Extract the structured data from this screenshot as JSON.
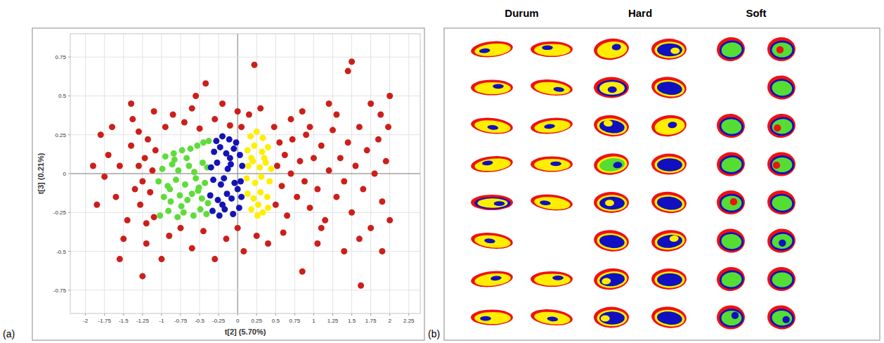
{
  "chart_data": {
    "type": "scatter",
    "xlabel": "t[2] (5.70%)",
    "ylabel": "t[3] (0.21%)",
    "xlim": [
      -2.2,
      2.4
    ],
    "ylim": [
      -0.9,
      0.9
    ],
    "xticks": [
      -2,
      -1.75,
      -1.5,
      -1.25,
      -1,
      -0.75,
      -0.5,
      -0.25,
      0,
      0.25,
      0.5,
      0.75,
      1,
      1.25,
      1.5,
      1.75,
      2,
      2.25
    ],
    "yticks": [
      -0.75,
      -0.5,
      -0.25,
      0,
      0.25,
      0.5,
      0.75
    ],
    "grid": true,
    "marker": "circle",
    "series": [
      {
        "color": "#cc1f1a",
        "x": [
          -1.28,
          -1.25,
          -1.22,
          -1.18,
          -1.15,
          -1.12,
          -1.1,
          -1.08,
          -1.3,
          -1.2,
          -1.35,
          -1.4,
          -1.45,
          -1.55,
          -1.6,
          -1.7,
          -1.75,
          -1.65,
          -1.5,
          -1.38,
          -0.95,
          -0.85,
          -0.7,
          -0.6,
          -0.5,
          -0.42,
          -0.3,
          -0.2,
          -0.1,
          0,
          0.05,
          -0.9,
          -0.75,
          -0.6,
          -0.45,
          -0.3,
          -0.15,
          0,
          0.08,
          -1,
          -0.55,
          0.15,
          0.3,
          0.22,
          0.25,
          0.4,
          0.5,
          0.52,
          0.55,
          0.58,
          0.62,
          0.65,
          0.7,
          0.72,
          0.78,
          0.82,
          0.88,
          0.9,
          0.95,
          1,
          1.05,
          1.1,
          1.15,
          1.2,
          1.25,
          1.3,
          1.35,
          1.4,
          1.45,
          1.5,
          1.55,
          1.6,
          1.65,
          1.7,
          1.75,
          1.8,
          1.85,
          1.9,
          1.95,
          2,
          1.98,
          0.6,
          0.85,
          1.05,
          1.2,
          1.4,
          1.5,
          1.45,
          1.62,
          0.85,
          1.75,
          1.9,
          2,
          0.7,
          1.3,
          1.6,
          1.88,
          0.48,
          0.95,
          1.1,
          -1.25,
          -1.55,
          -1.8,
          -1.85,
          -1.4,
          -1.1,
          -1.2,
          -1.9,
          -1.3
        ],
        "values": [
          -0.2,
          -0.05,
          0.1,
          0.22,
          -0.12,
          0.02,
          -0.28,
          0.15,
          0.05,
          -0.32,
          -0.1,
          0.18,
          -0.3,
          0.05,
          -0.15,
          0.12,
          -0.02,
          0.3,
          -0.42,
          0.35,
          0.3,
          0.38,
          0.33,
          0.42,
          0.29,
          0.58,
          0.35,
          0.45,
          0.31,
          0.4,
          0.3,
          -0.4,
          -0.35,
          -0.48,
          -0.37,
          -0.55,
          -0.42,
          -0.35,
          -0.5,
          -0.55,
          0.5,
          0.38,
          0.42,
          0.7,
          -0.4,
          -0.45,
          -0.2,
          0.05,
          0.2,
          -0.08,
          0.12,
          -0.27,
          0,
          0.22,
          -0.15,
          0.08,
          -0.05,
          0.25,
          -0.22,
          0.1,
          -0.1,
          0.18,
          -0.3,
          0.02,
          0.28,
          -0.15,
          0.1,
          -0.05,
          0.2,
          -0.25,
          0.05,
          0.3,
          -0.1,
          0.15,
          -0.35,
          0,
          0.22,
          -0.18,
          0.08,
          -0.3,
          0.3,
          -0.38,
          0.4,
          -0.45,
          0.45,
          -0.5,
          0.72,
          0.66,
          -0.72,
          -0.63,
          0.45,
          -0.5,
          0.5,
          0.35,
          0.38,
          -0.42,
          0.38,
          0.3,
          0.3,
          -0.35,
          -0.66,
          -0.55,
          0.25,
          -0.2,
          0.45,
          0.4,
          -0.45,
          0.05,
          0.27
        ]
      },
      {
        "color": "#5fdc3c",
        "x": [
          -1.02,
          -0.91,
          -0.79,
          -0.71,
          -0.58,
          -0.49,
          -0.41,
          -0.97,
          -0.88,
          -0.76,
          -0.66,
          -0.6,
          -0.47,
          -0.39,
          -1.04,
          -0.92,
          -0.81,
          -0.69,
          -0.55,
          -0.51,
          -0.43,
          -0.99,
          -0.86,
          -0.78,
          -0.64,
          -0.57,
          -0.46,
          -0.4,
          -0.95,
          -0.84,
          -0.73,
          -0.62,
          -0.53,
          -0.45,
          -0.38,
          -0.74,
          -0.83,
          -0.52,
          -0.67,
          -0.89
        ],
        "values": [
          -0.27,
          -0.24,
          -0.28,
          -0.25,
          -0.27,
          -0.23,
          -0.26,
          -0.15,
          -0.18,
          -0.14,
          -0.17,
          -0.13,
          -0.16,
          -0.19,
          -0.05,
          -0.08,
          -0.04,
          -0.07,
          -0.03,
          -0.09,
          -0.06,
          0.03,
          0.06,
          0.02,
          0.05,
          0.01,
          0.07,
          0.04,
          0.11,
          0.13,
          0.15,
          0.16,
          0.18,
          0.2,
          0.21,
          -0.21,
          0.09,
          -0.11,
          0.1,
          -0.1
        ]
      },
      {
        "color": "#1414b4",
        "x": [
          -0.33,
          -0.24,
          -0.17,
          -0.06,
          0.02,
          -0.36,
          -0.26,
          -0.14,
          -0.08,
          0.05,
          -0.32,
          -0.22,
          -0.18,
          -0.04,
          0.04,
          -0.35,
          -0.27,
          -0.13,
          -0.09,
          0.06,
          -0.31,
          -0.23,
          -0.15,
          -0.05,
          0.03,
          -0.28,
          -0.2,
          -0.11,
          -0.02,
          -0.2,
          -0.1,
          0
        ],
        "values": [
          -0.24,
          -0.27,
          -0.23,
          -0.26,
          -0.22,
          -0.14,
          -0.17,
          -0.13,
          -0.16,
          -0.15,
          -0.04,
          -0.07,
          -0.03,
          -0.06,
          -0.05,
          0.04,
          0.07,
          0.03,
          0.06,
          0.05,
          0.14,
          0.17,
          0.13,
          0.16,
          0.12,
          0.21,
          0.24,
          0.22,
          0.2,
          -0.2,
          0.1,
          -0.1
        ]
      },
      {
        "color": "#ffee00",
        "x": [
          0.18,
          0.26,
          0.33,
          0.4,
          0.13,
          0.21,
          0.3,
          0.39,
          0.12,
          0.23,
          0.31,
          0.42,
          0.14,
          0.2,
          0.29,
          0.37,
          0.44,
          0.13,
          0.22,
          0.32,
          0.4,
          0.17,
          0.25,
          0.33,
          0.27,
          0.35,
          0.18
        ],
        "values": [
          -0.23,
          -0.27,
          -0.25,
          -0.22,
          -0.13,
          -0.16,
          -0.12,
          -0.15,
          -0.03,
          -0.06,
          -0.02,
          -0.05,
          0.05,
          0.08,
          0.04,
          0.07,
          0.03,
          0.15,
          0.18,
          0.14,
          0.17,
          0.24,
          0.27,
          0.23,
          -0.2,
          0.1,
          0.1
        ]
      }
    ]
  },
  "panel_labels": [
    "(a)",
    "(b)"
  ],
  "panel_b": {
    "groups": [
      {
        "title": "Durum",
        "columns": [
          [
            {
              "color": "#ffee00",
              "ring": "#ffee00",
              "patch": "#1010c0"
            },
            {
              "color": "#ffee00",
              "ring": "#ffee00",
              "patch": "#1010c0"
            },
            {
              "color": "#ffee00",
              "ring": "#ffee00",
              "patch": "#1010c0"
            },
            {
              "color": "#ffee00",
              "ring": "#ffee00",
              "patch": "#1010c0"
            },
            {
              "color": "#ffee00",
              "ring": "#1010c0",
              "patch": "#1010c0"
            },
            {
              "color": "#ffee00",
              "ring": "#ffee00",
              "patch": "#1010c0"
            },
            {
              "color": "#ffee00",
              "ring": "#ffee00",
              "patch": "#1010c0"
            },
            {
              "color": "#ffee00",
              "ring": "#ffee00",
              "patch": "#1010c0"
            }
          ],
          [
            {
              "color": "#ffee00",
              "ring": "#ffee00",
              "patch": "#1010c0"
            },
            {
              "color": "#ffee00",
              "ring": "#ffee00",
              "patch": "#1010c0"
            },
            {
              "color": "#ffee00",
              "ring": "#ffee00",
              "patch": "#1010c0"
            },
            {
              "color": "#ffee00",
              "ring": "#ffee00",
              "patch": "#1010c0"
            },
            {
              "color": "#ffee00",
              "ring": "#ffee00",
              "patch": "#1010c0"
            },
            null,
            {
              "color": "#ffee00",
              "ring": "#ffee00",
              "patch": "#1010c0"
            },
            {
              "color": "#ffee00",
              "ring": "#ffee00",
              "patch": "#1010c0"
            }
          ]
        ]
      },
      {
        "title": "Hard",
        "columns": [
          [
            {
              "color": "#ffee00",
              "ring": "#ffee00",
              "patch": "#1010c0"
            },
            {
              "color": "#ffee00",
              "ring": "#1010c0",
              "patch": "#1010c0"
            },
            {
              "color": "#1010c0",
              "ring": "#ffee00",
              "patch": "#ffee00"
            },
            {
              "color": "#55dd33",
              "ring": "#ffee00",
              "patch": "#1010c0"
            },
            {
              "color": "#1010c0",
              "ring": "#ffee00",
              "patch": "#ffee00"
            },
            {
              "color": "#1010c0",
              "ring": "#ffee00",
              "patch": "#1010c0"
            },
            {
              "color": "#1010c0",
              "ring": "#ffee00",
              "patch": "#ffee00"
            },
            {
              "color": "#1010c0",
              "ring": "#ffee00",
              "patch": "#ffee00"
            }
          ],
          [
            {
              "color": "#1010c0",
              "ring": "#ffee00",
              "patch": "#ffee00"
            },
            {
              "color": "#1010c0",
              "ring": "#ffee00",
              "patch": "#1010c0"
            },
            {
              "color": "#ffee00",
              "ring": "#ffee00",
              "patch": "#1010c0"
            },
            {
              "color": "#1010c0",
              "ring": "#ffee00",
              "patch": "#1010c0"
            },
            {
              "color": "#1010c0",
              "ring": "#ffee00",
              "patch": "#1010c0"
            },
            {
              "color": "#1010c0",
              "ring": "#ffee00",
              "patch": "#ffee00"
            },
            {
              "color": "#1010c0",
              "ring": "#ffee00",
              "patch": "#1010c0"
            },
            {
              "color": "#1010c0",
              "ring": "#ffee00",
              "patch": "#1010c0"
            }
          ]
        ]
      },
      {
        "title": "Soft",
        "columns": [
          [
            {
              "color": "#55dd33",
              "ring": "#1010c0",
              "patch": "#55dd33"
            },
            null,
            {
              "color": "#55dd33",
              "ring": "#1010c0",
              "patch": "#55dd33"
            },
            {
              "color": "#55dd33",
              "ring": "#1010c0",
              "patch": "#55dd33"
            },
            {
              "color": "#55dd33",
              "ring": "#1010c0",
              "patch": "#ee1111"
            },
            {
              "color": "#55dd33",
              "ring": "#1010c0",
              "patch": "#55dd33"
            },
            {
              "color": "#55dd33",
              "ring": "#1010c0",
              "patch": "#55dd33"
            },
            {
              "color": "#55dd33",
              "ring": "#1010c0",
              "patch": "#1010c0"
            }
          ],
          [
            {
              "color": "#55dd33",
              "ring": "#1010c0",
              "patch": "#ee1111"
            },
            {
              "color": "#55dd33",
              "ring": "#1010c0",
              "patch": "#55dd33"
            },
            {
              "color": "#55dd33",
              "ring": "#1010c0",
              "patch": "#ee1111"
            },
            {
              "color": "#55dd33",
              "ring": "#1010c0",
              "patch": "#ee1111"
            },
            {
              "color": "#55dd33",
              "ring": "#1010c0",
              "patch": "#55dd33"
            },
            {
              "color": "#55dd33",
              "ring": "#1010c0",
              "patch": "#1010c0"
            },
            {
              "color": "#55dd33",
              "ring": "#1010c0",
              "patch": "#55dd33"
            },
            {
              "color": "#55dd33",
              "ring": "#1010c0",
              "patch": "#1010c0"
            }
          ]
        ]
      }
    ]
  }
}
